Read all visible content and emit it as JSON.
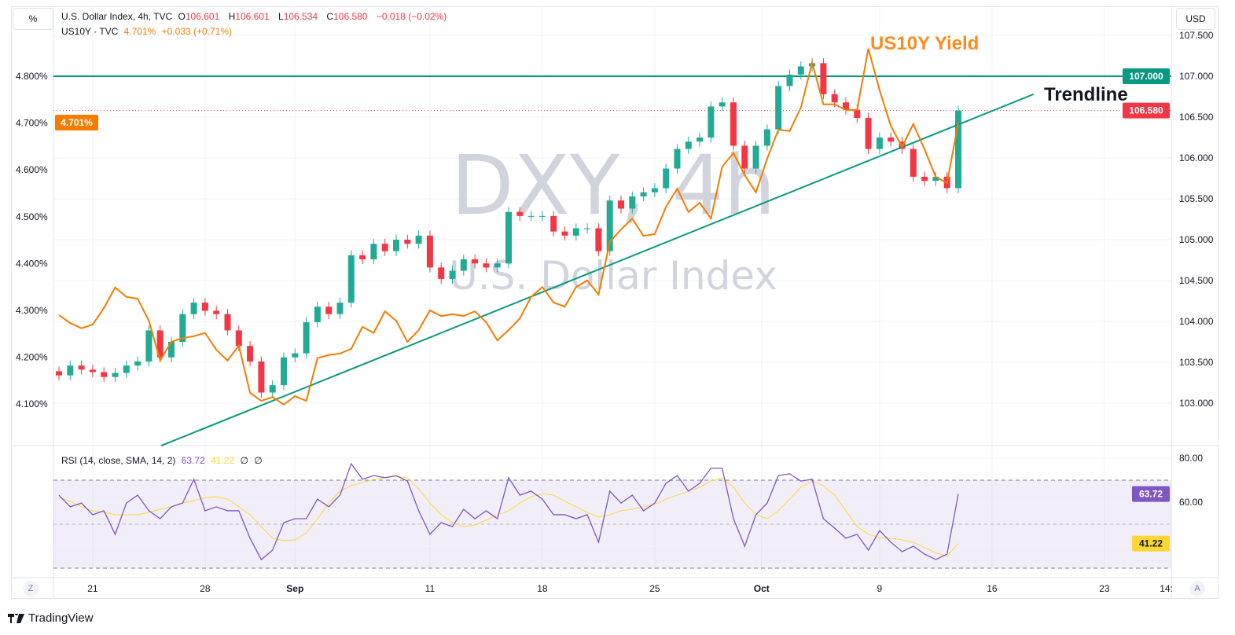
{
  "header": {
    "unit_button": "%",
    "currency_button": "USD",
    "symbol_line": "U.S. Dollar Index, 4h, TVC",
    "ohlc": {
      "o_label": "O",
      "o": "106.601",
      "h_label": "H",
      "h": "106.601",
      "l_label": "L",
      "l": "106.534",
      "c_label": "C",
      "c": "106.580",
      "change": "−0.018 (−0.02%)"
    },
    "compare_symbol": "US10Y · TVC",
    "compare_value": "4.701%",
    "compare_change": "+0.033 (+0.71%)"
  },
  "watermark": {
    "line1": "DXY, 4h",
    "line2": "U.S. Dollar Index"
  },
  "annotations": {
    "yield_label": "US10Y Yield",
    "trendline_label": "Trendline"
  },
  "rsi_legend": {
    "title": "RSI (14, close, SMA, 14, 2)",
    "rsi": "63.72",
    "sma": "41.22",
    "na1": "∅",
    "na2": "∅"
  },
  "bottom": {
    "z_button": "Z",
    "a_button": "A",
    "brand": "TradingView"
  },
  "colors": {
    "up": "#22ab94",
    "down": "#f23645",
    "yield": "#f57c00",
    "level": "#089981",
    "rsi": "#7e57c2",
    "rsi_sma": "#fdd835",
    "band": "#7e57c2"
  },
  "chart_data": [
    {
      "type": "candlestick",
      "name": "U.S. Dollar Index (DXY) 4h",
      "x_unit": "half-trading-day index",
      "x_ticks": [
        {
          "i": 3,
          "label": "21"
        },
        {
          "i": 13,
          "label": "28"
        },
        {
          "i": 21,
          "label": "Sep",
          "bold": true
        },
        {
          "i": 33,
          "label": "11"
        },
        {
          "i": 43,
          "label": "18"
        },
        {
          "i": 53,
          "label": "25"
        },
        {
          "i": 62.5,
          "label": "Oct",
          "bold": true
        },
        {
          "i": 73,
          "label": "9"
        },
        {
          "i": 83,
          "label": "16"
        },
        {
          "i": 93,
          "label": "23"
        },
        {
          "i": 98.5,
          "label": "14:"
        }
      ],
      "close": [
        103.34,
        103.46,
        103.41,
        103.38,
        103.32,
        103.37,
        103.46,
        103.51,
        103.89,
        103.56,
        103.75,
        104.09,
        104.23,
        104.13,
        104.09,
        103.89,
        103.7,
        103.51,
        103.13,
        103.22,
        103.56,
        103.61,
        103.99,
        104.18,
        104.09,
        104.23,
        104.81,
        104.76,
        104.95,
        104.86,
        105.0,
        104.95,
        105.05,
        104.66,
        104.52,
        104.62,
        104.76,
        104.71,
        104.66,
        104.71,
        105.34,
        105.29,
        105.29,
        105.29,
        105.1,
        105.05,
        105.14,
        105.14,
        104.86,
        105.48,
        105.38,
        105.53,
        105.58,
        105.63,
        105.87,
        106.11,
        106.2,
        106.25,
        106.63,
        106.68,
        106.15,
        105.87,
        106.15,
        106.35,
        106.88,
        107.02,
        107.12,
        107.16,
        106.78,
        106.68,
        106.59,
        106.49,
        106.11,
        106.25,
        106.2,
        106.11,
        105.77,
        105.72,
        105.77,
        105.63,
        106.58
      ],
      "y_axis": {
        "side": "right",
        "ticks": [
          "107.500",
          "107.000",
          "106.500",
          "106.000",
          "105.500",
          "105.000",
          "104.500",
          "104.000",
          "103.500",
          "103.000"
        ],
        "range": [
          102.55,
          107.85
        ]
      },
      "last_price": "106.580",
      "horizontal_level": "107.000",
      "trendline": {
        "from": {
          "i": 9.1,
          "price": 102.48
        },
        "to": {
          "i": 86.7,
          "price": 106.78
        }
      }
    },
    {
      "type": "line",
      "name": "US10Y",
      "y_axis": {
        "side": "left",
        "ticks": [
          "4.800%",
          "4.700%",
          "4.600%",
          "4.500%",
          "4.400%",
          "4.300%",
          "4.200%",
          "4.100%"
        ],
        "range": [
          4.045,
          4.935
        ]
      },
      "last_value": "4.701%",
      "values": [
        4.29,
        4.273,
        4.262,
        4.27,
        4.305,
        4.349,
        4.329,
        4.325,
        4.278,
        4.193,
        4.233,
        4.241,
        4.245,
        4.252,
        4.216,
        4.193,
        4.225,
        4.124,
        4.107,
        4.115,
        4.099,
        4.117,
        4.107,
        4.198,
        4.205,
        4.208,
        4.218,
        4.265,
        4.252,
        4.298,
        4.278,
        4.233,
        4.258,
        4.3,
        4.288,
        4.292,
        4.288,
        4.298,
        4.275,
        4.236,
        4.258,
        4.283,
        4.329,
        4.35,
        4.317,
        4.308,
        4.35,
        4.364,
        4.334,
        4.446,
        4.473,
        4.496,
        4.459,
        4.463,
        4.521,
        4.56,
        4.51,
        4.53,
        4.496,
        4.607,
        4.636,
        4.589,
        4.552,
        4.624,
        4.686,
        4.683,
        4.733,
        4.829,
        4.74,
        4.74,
        4.728,
        4.728,
        4.859,
        4.77,
        4.694,
        4.649,
        4.698,
        4.644,
        4.585,
        4.572,
        4.701
      ]
    },
    {
      "type": "line",
      "name": "RSI (14, close, SMA, 14, 2)",
      "y_axis": {
        "side": "right",
        "ticks": [
          "80.00",
          "60.00"
        ],
        "range": [
          22,
          83
        ],
        "bands": [
          70,
          50,
          30
        ]
      },
      "series": [
        {
          "name": "RSI",
          "last": "63.72",
          "values": [
            63.2,
            57.9,
            59.6,
            54.3,
            56.1,
            45.4,
            59.6,
            63.2,
            56.1,
            52.5,
            57.9,
            59.6,
            70.4,
            56.1,
            57.9,
            56.1,
            56.1,
            43.6,
            33.9,
            38.2,
            50.7,
            52.5,
            52.5,
            61.4,
            57.9,
            63.2,
            77.5,
            70.4,
            72.1,
            71.1,
            72.1,
            69.6,
            56.1,
            45.4,
            50.7,
            48.9,
            56.8,
            52.5,
            56.1,
            52.5,
            71.1,
            63.2,
            65.0,
            61.4,
            54.3,
            54.3,
            52.5,
            54.3,
            41.8,
            65.0,
            59.6,
            63.2,
            56.1,
            59.6,
            68.6,
            72.1,
            65.0,
            68.6,
            75.4,
            75.4,
            52.5,
            40.0,
            54.3,
            59.6,
            72.1,
            72.9,
            69.6,
            70.4,
            52.5,
            48.2,
            43.6,
            45.4,
            38.2,
            47.1,
            41.8,
            37.5,
            40.0,
            36.4,
            33.9,
            36.4,
            63.72
          ]
        },
        {
          "name": "SMA",
          "last": "41.22",
          "values": [
            62.1,
            60.4,
            57.9,
            56.1,
            55.4,
            54.3,
            54.3,
            54.3,
            55.4,
            56.8,
            57.9,
            59.6,
            60.7,
            62.1,
            62.5,
            61.4,
            57.9,
            54.3,
            48.9,
            43.6,
            42.5,
            42.9,
            46.1,
            52.5,
            59.6,
            65.0,
            67.5,
            68.9,
            70.4,
            71.1,
            71.8,
            71.1,
            66.1,
            59.6,
            54.3,
            50.7,
            48.9,
            49.6,
            51.8,
            54.3,
            56.1,
            59.6,
            62.5,
            63.9,
            63.2,
            60.4,
            57.9,
            55.4,
            53.2,
            54.3,
            56.1,
            56.8,
            57.9,
            58.9,
            61.4,
            63.2,
            65.0,
            66.8,
            69.6,
            71.1,
            66.8,
            59.6,
            54.3,
            52.5,
            56.1,
            61.4,
            66.8,
            69.6,
            67.5,
            63.2,
            56.1,
            48.9,
            45.4,
            43.9,
            43.6,
            42.9,
            41.8,
            39.3,
            37.1,
            35.4,
            41.22
          ]
        }
      ]
    }
  ]
}
